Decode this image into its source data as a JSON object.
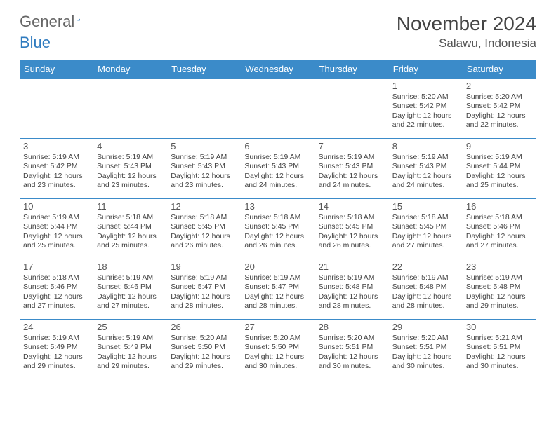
{
  "brand": {
    "part1": "General",
    "part2": "Blue",
    "logo_color": "#2f7bbf"
  },
  "title": "November 2024",
  "location": "Salawu, Indonesia",
  "colors": {
    "header_bg": "#3b8bc9",
    "header_text": "#ffffff",
    "cell_border": "#3b8bc9",
    "text": "#444444",
    "title_text": "#444444",
    "background": "#ffffff"
  },
  "day_headers": [
    "Sunday",
    "Monday",
    "Tuesday",
    "Wednesday",
    "Thursday",
    "Friday",
    "Saturday"
  ],
  "sunrise_label": "Sunrise: ",
  "sunset_label": "Sunset: ",
  "daylight_label_prefix": "Daylight: ",
  "weeks": [
    [
      null,
      null,
      null,
      null,
      null,
      {
        "n": "1",
        "sr": "5:20 AM",
        "ss": "5:42 PM",
        "dl": "12 hours and 22 minutes."
      },
      {
        "n": "2",
        "sr": "5:20 AM",
        "ss": "5:42 PM",
        "dl": "12 hours and 22 minutes."
      }
    ],
    [
      {
        "n": "3",
        "sr": "5:19 AM",
        "ss": "5:42 PM",
        "dl": "12 hours and 23 minutes."
      },
      {
        "n": "4",
        "sr": "5:19 AM",
        "ss": "5:43 PM",
        "dl": "12 hours and 23 minutes."
      },
      {
        "n": "5",
        "sr": "5:19 AM",
        "ss": "5:43 PM",
        "dl": "12 hours and 23 minutes."
      },
      {
        "n": "6",
        "sr": "5:19 AM",
        "ss": "5:43 PM",
        "dl": "12 hours and 24 minutes."
      },
      {
        "n": "7",
        "sr": "5:19 AM",
        "ss": "5:43 PM",
        "dl": "12 hours and 24 minutes."
      },
      {
        "n": "8",
        "sr": "5:19 AM",
        "ss": "5:43 PM",
        "dl": "12 hours and 24 minutes."
      },
      {
        "n": "9",
        "sr": "5:19 AM",
        "ss": "5:44 PM",
        "dl": "12 hours and 25 minutes."
      }
    ],
    [
      {
        "n": "10",
        "sr": "5:19 AM",
        "ss": "5:44 PM",
        "dl": "12 hours and 25 minutes."
      },
      {
        "n": "11",
        "sr": "5:18 AM",
        "ss": "5:44 PM",
        "dl": "12 hours and 25 minutes."
      },
      {
        "n": "12",
        "sr": "5:18 AM",
        "ss": "5:45 PM",
        "dl": "12 hours and 26 minutes."
      },
      {
        "n": "13",
        "sr": "5:18 AM",
        "ss": "5:45 PM",
        "dl": "12 hours and 26 minutes."
      },
      {
        "n": "14",
        "sr": "5:18 AM",
        "ss": "5:45 PM",
        "dl": "12 hours and 26 minutes."
      },
      {
        "n": "15",
        "sr": "5:18 AM",
        "ss": "5:45 PM",
        "dl": "12 hours and 27 minutes."
      },
      {
        "n": "16",
        "sr": "5:18 AM",
        "ss": "5:46 PM",
        "dl": "12 hours and 27 minutes."
      }
    ],
    [
      {
        "n": "17",
        "sr": "5:18 AM",
        "ss": "5:46 PM",
        "dl": "12 hours and 27 minutes."
      },
      {
        "n": "18",
        "sr": "5:19 AM",
        "ss": "5:46 PM",
        "dl": "12 hours and 27 minutes."
      },
      {
        "n": "19",
        "sr": "5:19 AM",
        "ss": "5:47 PM",
        "dl": "12 hours and 28 minutes."
      },
      {
        "n": "20",
        "sr": "5:19 AM",
        "ss": "5:47 PM",
        "dl": "12 hours and 28 minutes."
      },
      {
        "n": "21",
        "sr": "5:19 AM",
        "ss": "5:48 PM",
        "dl": "12 hours and 28 minutes."
      },
      {
        "n": "22",
        "sr": "5:19 AM",
        "ss": "5:48 PM",
        "dl": "12 hours and 28 minutes."
      },
      {
        "n": "23",
        "sr": "5:19 AM",
        "ss": "5:48 PM",
        "dl": "12 hours and 29 minutes."
      }
    ],
    [
      {
        "n": "24",
        "sr": "5:19 AM",
        "ss": "5:49 PM",
        "dl": "12 hours and 29 minutes."
      },
      {
        "n": "25",
        "sr": "5:19 AM",
        "ss": "5:49 PM",
        "dl": "12 hours and 29 minutes."
      },
      {
        "n": "26",
        "sr": "5:20 AM",
        "ss": "5:50 PM",
        "dl": "12 hours and 29 minutes."
      },
      {
        "n": "27",
        "sr": "5:20 AM",
        "ss": "5:50 PM",
        "dl": "12 hours and 30 minutes."
      },
      {
        "n": "28",
        "sr": "5:20 AM",
        "ss": "5:51 PM",
        "dl": "12 hours and 30 minutes."
      },
      {
        "n": "29",
        "sr": "5:20 AM",
        "ss": "5:51 PM",
        "dl": "12 hours and 30 minutes."
      },
      {
        "n": "30",
        "sr": "5:21 AM",
        "ss": "5:51 PM",
        "dl": "12 hours and 30 minutes."
      }
    ]
  ]
}
